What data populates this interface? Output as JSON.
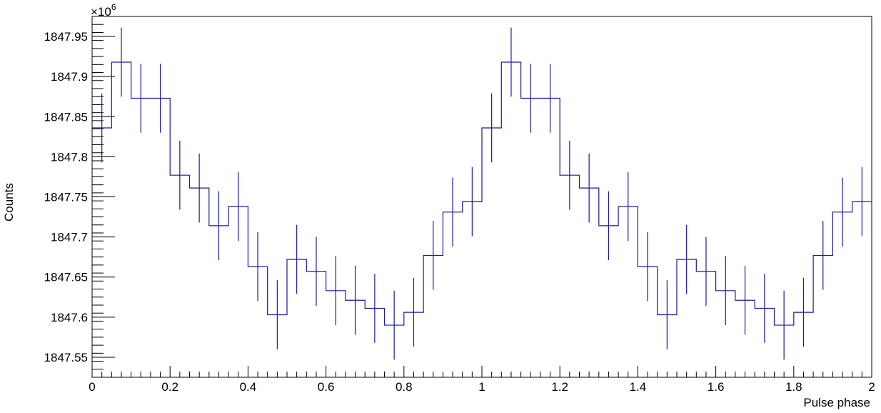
{
  "chart_data": {
    "type": "line",
    "style": "step-histogram-with-error-bars",
    "xlabel": "Pulse phase",
    "ylabel": "Counts",
    "multiplier_base": "×10",
    "multiplier_exp": "6",
    "xlim": [
      0,
      2
    ],
    "ylim": [
      1847.525,
      1847.975
    ],
    "y_units": "×10^6 counts",
    "xticks": [
      0,
      0.2,
      0.4,
      0.6,
      0.8,
      1,
      1.2,
      1.4,
      1.6,
      1.8,
      2
    ],
    "xtick_labels": [
      "0",
      "0.2",
      "0.4",
      "0.6",
      "0.8",
      "1",
      "1.2",
      "1.4",
      "1.6",
      "1.8",
      "2"
    ],
    "yticks": [
      1847.55,
      1847.6,
      1847.65,
      1847.7,
      1847.75,
      1847.8,
      1847.85,
      1847.9,
      1847.95
    ],
    "ytick_labels": [
      "1847.55",
      "1847.6",
      "1847.65",
      "1847.7",
      "1847.75",
      "1847.8",
      "1847.85",
      "1847.9",
      "1847.95"
    ],
    "bin_width": 0.05,
    "bin_centers": [
      0.025,
      0.075,
      0.125,
      0.175,
      0.225,
      0.275,
      0.325,
      0.375,
      0.425,
      0.475,
      0.525,
      0.575,
      0.625,
      0.675,
      0.725,
      0.775,
      0.825,
      0.875,
      0.925,
      0.975,
      1.025,
      1.075,
      1.125,
      1.175,
      1.225,
      1.275,
      1.325,
      1.375,
      1.425,
      1.475,
      1.525,
      1.575,
      1.625,
      1.675,
      1.725,
      1.775,
      1.825,
      1.875,
      1.925,
      1.975
    ],
    "series": [
      {
        "values": [
          1847.836,
          1847.918,
          1847.873,
          1847.873,
          1847.777,
          1847.761,
          1847.714,
          1847.738,
          1847.663,
          1847.603,
          1847.672,
          1847.657,
          1847.633,
          1847.621,
          1847.611,
          1847.59,
          1847.606,
          1847.677,
          1847.731,
          1847.744,
          1847.836,
          1847.918,
          1847.873,
          1847.873,
          1847.777,
          1847.761,
          1847.714,
          1847.738,
          1847.663,
          1847.603,
          1847.672,
          1847.657,
          1847.633,
          1847.621,
          1847.611,
          1847.59,
          1847.606,
          1847.677,
          1847.731,
          1847.744
        ],
        "errors": 0.043
      }
    ],
    "colors": {
      "series": "#1a1aa0",
      "axis": "#000000",
      "background": "#ffffff"
    },
    "grid": false
  }
}
